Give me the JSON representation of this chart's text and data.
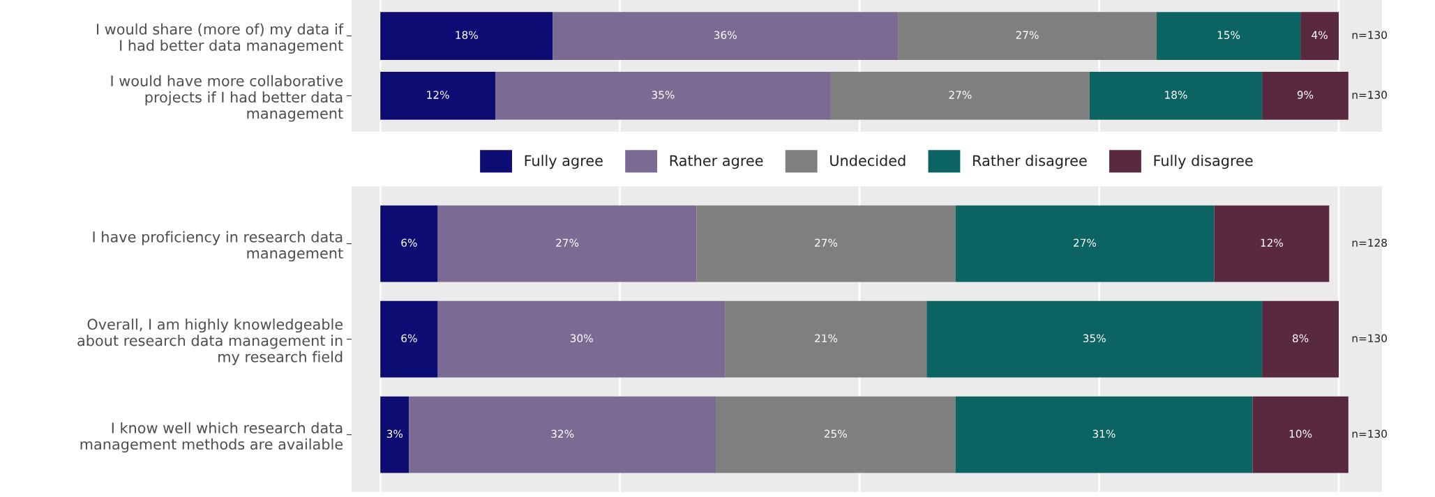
{
  "chart_data": [
    {
      "type": "bar",
      "orientation": "horizontal",
      "stacked": true,
      "categories": [
        "I would share (more of) my data if\nI had better data management",
        "I would have more collaborative\nprojects if I had better data\nmanagement"
      ],
      "series": [
        {
          "name": "Fully agree",
          "color": "#0c0c72",
          "values": [
            18,
            12
          ],
          "value_labels": [
            "18%",
            "12%"
          ]
        },
        {
          "name": "Rather agree",
          "color": "#7b6b93",
          "values": [
            36,
            35
          ],
          "value_labels": [
            "36%",
            "35%"
          ]
        },
        {
          "name": "Undecided",
          "color": "#7f7f7f",
          "values": [
            27,
            27
          ],
          "value_labels": [
            "27%",
            "27%"
          ]
        },
        {
          "name": "Rather disagree",
          "color": "#0b6462",
          "values": [
            15,
            18
          ],
          "value_labels": [
            "15%",
            "18%"
          ]
        },
        {
          "name": "Fully disagree",
          "color": "#592a3f",
          "values": [
            4,
            9
          ],
          "value_labels": [
            "4%",
            "9%"
          ]
        }
      ],
      "xlim": [
        -3,
        104.5
      ],
      "xticks": [
        {
          "value": 0,
          "label": null
        },
        {
          "value": 25,
          "label": null
        },
        {
          "value": 50,
          "label": null
        },
        {
          "value": 75,
          "label": null
        },
        {
          "value": 100,
          "label": null
        }
      ],
      "tick_labels": "y",
      "grid": "x",
      "legend": "bottom",
      "annotations": [
        "n=130",
        "n=130"
      ]
    },
    {
      "type": "bar",
      "orientation": "horizontal",
      "stacked": true,
      "categories": [
        "I have proficiency in research data\nmanagement",
        "Overall, I am highly knowledgeable\nabout research data management in\nmy research field",
        "I know well which research data\nmanagement methods are available"
      ],
      "series": [
        {
          "color": "#0c0c72",
          "values": [
            6,
            6,
            3
          ],
          "value_labels": [
            "6%",
            "6%",
            "3%"
          ]
        },
        {
          "color": "#7b6b93",
          "values": [
            27,
            30,
            32
          ],
          "value_labels": [
            "27%",
            "30%",
            "32%"
          ]
        },
        {
          "color": "#7f7f7f",
          "values": [
            27,
            21,
            25
          ],
          "value_labels": [
            "27%",
            "21%",
            "25%"
          ]
        },
        {
          "color": "#0b6462",
          "values": [
            27,
            35,
            31
          ],
          "value_labels": [
            "27%",
            "35%",
            "31%"
          ]
        },
        {
          "color": "#592a3f",
          "values": [
            12,
            8,
            10
          ],
          "value_labels": [
            "12%",
            "8%",
            "10%"
          ]
        }
      ],
      "xlim": [
        -3,
        104.5
      ],
      "xticks": [
        {
          "value": 0,
          "label": null
        },
        {
          "value": 25,
          "label": null
        },
        {
          "value": 50,
          "label": null
        },
        {
          "value": 75,
          "label": null
        },
        {
          "value": 100,
          "label": null
        }
      ],
      "tick_labels": "y",
      "grid": "x",
      "annotations": [
        "n=128",
        "n=130",
        "n=130"
      ]
    }
  ]
}
